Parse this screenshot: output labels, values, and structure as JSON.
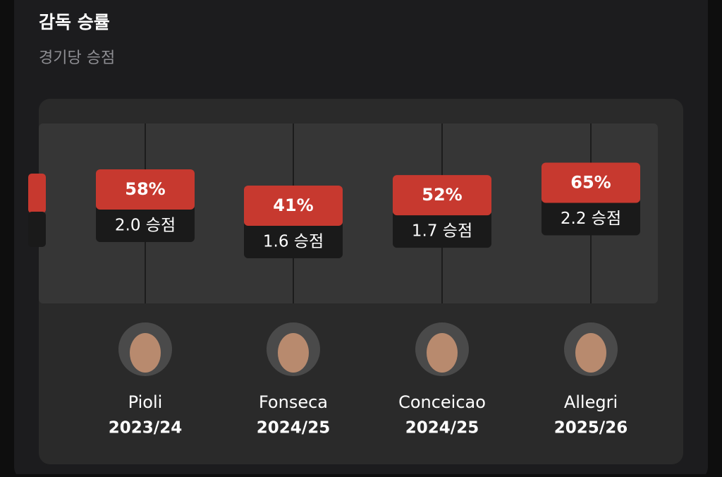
{
  "header": {
    "title": "감독 승률",
    "subtitle": "경기당 승점"
  },
  "managers": [
    {
      "win_rate": 58,
      "win_rate_label": "58%",
      "points": "2.0 승점",
      "name": "Pioli",
      "season": "2023/24"
    },
    {
      "win_rate": 41,
      "win_rate_label": "41%",
      "points": "1.6 승점",
      "name": "Fonseca",
      "season": "2024/25"
    },
    {
      "win_rate": 52,
      "win_rate_label": "52%",
      "points": "1.7 승점",
      "name": "Conceicao",
      "season": "2024/25"
    },
    {
      "win_rate": 65,
      "win_rate_label": "65%",
      "points": "2.2 승점",
      "name": "Allegri",
      "season": "2025/26"
    }
  ]
}
